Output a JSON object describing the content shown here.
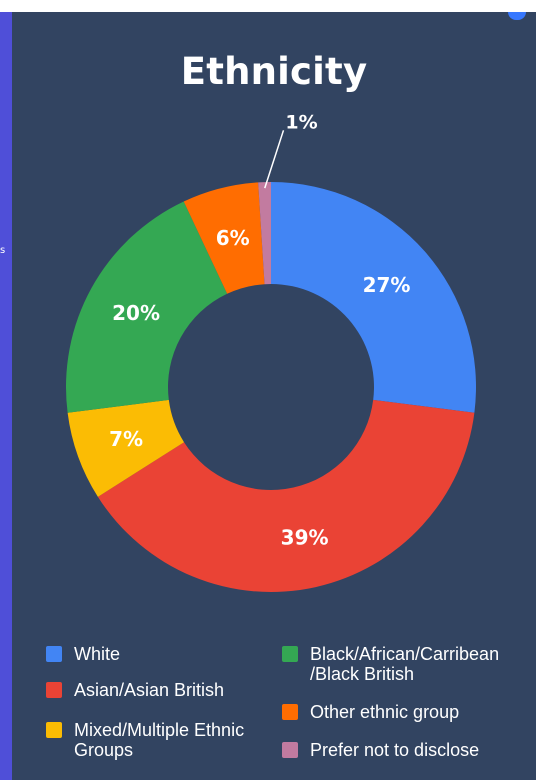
{
  "chart_data": {
    "type": "pie",
    "title": "Ethnicity",
    "categories": [
      "White",
      "Asian/Asian British",
      "Mixed/Multiple Ethnic Groups",
      "Black/African/Carribean /Black British",
      "Other ethnic group",
      "Prefer not to disclose"
    ],
    "values": [
      27,
      39,
      7,
      20,
      6,
      1
    ],
    "value_labels": [
      "27%",
      "39%",
      "7%",
      "20%",
      "6%",
      "1%"
    ],
    "colors": [
      "#4285f4",
      "#ea4335",
      "#fbbc04",
      "#34a853",
      "#ff6d01",
      "#c27ba0"
    ],
    "donut": true,
    "legend_position": "bottom"
  },
  "legend": {
    "items": [
      {
        "label_lines": [
          "White"
        ],
        "color": "#4285f4"
      },
      {
        "label_lines": [
          "Asian/Asian British"
        ],
        "color": "#ea4335"
      },
      {
        "label_lines": [
          "Mixed/Multiple Ethnic",
          "Groups"
        ],
        "color": "#fbbc04"
      },
      {
        "label_lines": [
          "Black/African/Carribean",
          "/Black British"
        ],
        "color": "#34a853"
      },
      {
        "label_lines": [
          "Other ethnic group"
        ],
        "color": "#ff6d01"
      },
      {
        "label_lines": [
          "Prefer not to disclose"
        ],
        "color": "#c27ba0"
      }
    ]
  },
  "panel": {
    "background": "#324461",
    "accent": "#4f4fd8"
  },
  "left_edge_text": "s"
}
